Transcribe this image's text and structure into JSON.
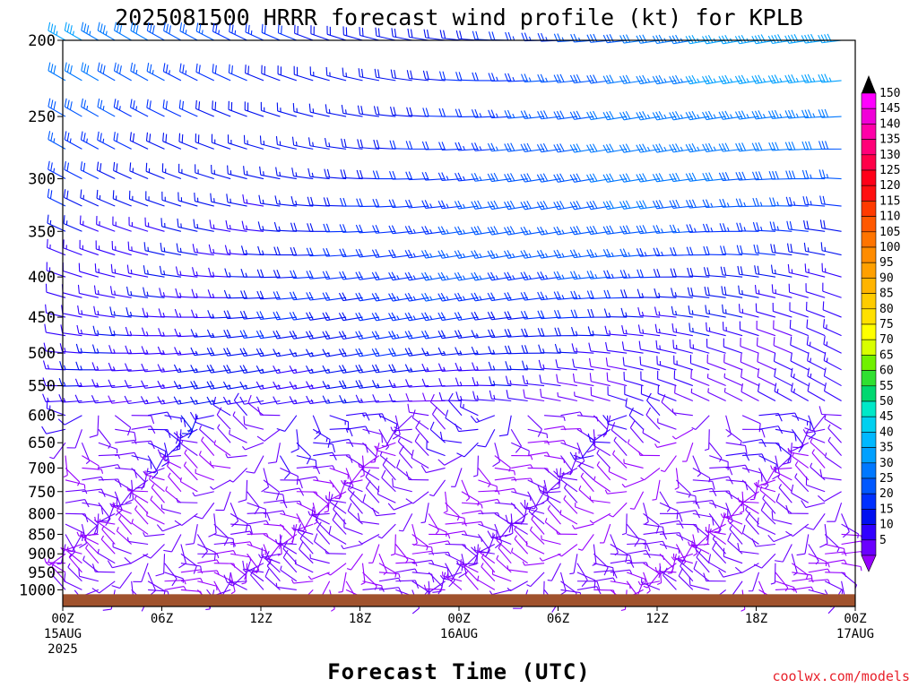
{
  "chart_data": {
    "type": "wind_barb_time_height",
    "title": "2025081500 HRRR forecast wind profile (kt) for KPLB",
    "xlabel": "Forecast Time (UTC)",
    "ylabel": "",
    "credit": "coolwx.com/models",
    "y_scale": "log-pressure",
    "ylim": [
      1050,
      200
    ],
    "y_ticks": [
      "200",
      "250",
      "300",
      "350",
      "400",
      "450",
      "500",
      "550",
      "600",
      "650",
      "700",
      "750",
      "800",
      "850",
      "900",
      "950",
      "1000"
    ],
    "x_ticks": [
      {
        "line1": "00Z",
        "line2": "15AUG",
        "line3": "2025"
      },
      {
        "line1": "06Z",
        "line2": "",
        "line3": ""
      },
      {
        "line1": "12Z",
        "line2": "",
        "line3": ""
      },
      {
        "line1": "18Z",
        "line2": "",
        "line3": ""
      },
      {
        "line1": "00Z",
        "line2": "16AUG",
        "line3": ""
      },
      {
        "line1": "06Z",
        "line2": "",
        "line3": ""
      },
      {
        "line1": "12Z",
        "line2": "",
        "line3": ""
      },
      {
        "line1": "18Z",
        "line2": "",
        "line3": ""
      },
      {
        "line1": "00Z",
        "line2": "17AUG",
        "line3": ""
      }
    ],
    "forecast_hours": [
      0,
      48
    ],
    "barb_levels_hpa": [
      200,
      225,
      250,
      275,
      300,
      325,
      350,
      375,
      400,
      425,
      450,
      475,
      500,
      525,
      550,
      575,
      600,
      625,
      650,
      675,
      700,
      725,
      750,
      775,
      800,
      825,
      850,
      875,
      900,
      925,
      950,
      975,
      1000
    ],
    "colorbar": {
      "units": "kt",
      "ticks": [
        "150",
        "145",
        "140",
        "135",
        "130",
        "125",
        "120",
        "115",
        "110",
        "105",
        "100",
        "95",
        "90",
        "85",
        "80",
        "75",
        "70",
        "65",
        "60",
        "55",
        "50",
        "45",
        "40",
        "35",
        "30",
        "25",
        "20",
        "15",
        "10",
        "5"
      ],
      "colors": [
        "#ff00ff",
        "#f000d8",
        "#ff00a8",
        "#ff0078",
        "#ff0048",
        "#ff0018",
        "#ff1010",
        "#ff3a00",
        "#ff5800",
        "#ff7400",
        "#ff8c00",
        "#ffa000",
        "#ffb400",
        "#ffcc00",
        "#ffe000",
        "#ffff00",
        "#d8ff00",
        "#70f000",
        "#30e030",
        "#00d870",
        "#00e8c8",
        "#00d0f0",
        "#00b8ff",
        "#00a0ff",
        "#0078ff",
        "#0058ff",
        "#0030ff",
        "#0010f0",
        "#3000ff",
        "#6a00ff",
        "#9600ff"
      ]
    },
    "ground_level_hpa": 1013,
    "ground_color": "#a0522d"
  }
}
